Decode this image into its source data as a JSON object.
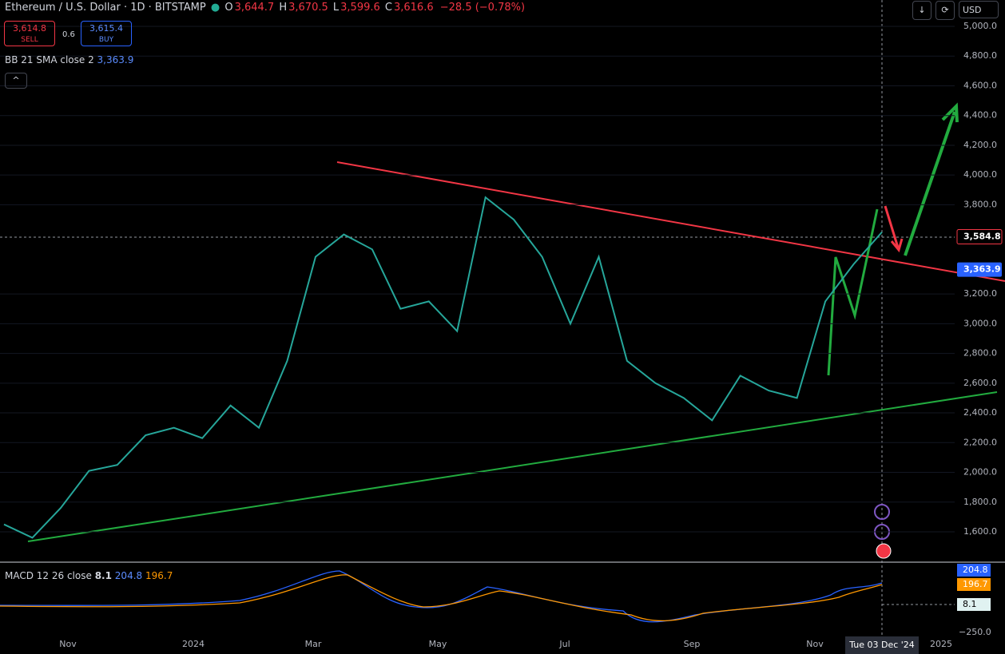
{
  "header": {
    "symbol": "Ethereum / U.S. Dollar · 1D · BITSTAMP",
    "ohlc": [
      {
        "key": "O",
        "value": "3,644.7"
      },
      {
        "key": "H",
        "value": "3,670.5"
      },
      {
        "key": "L",
        "value": "3,599.6"
      },
      {
        "key": "C",
        "value": "3,616.6"
      }
    ],
    "change": "−28.5 (−0.78%)"
  },
  "trade": {
    "sell_price": "3,614.8",
    "sell": "SELL",
    "spread": "0.6",
    "buy_price": "3,615.4",
    "buy": "BUY"
  },
  "indicator": {
    "name": "BB 21 SMA close 2",
    "value": "3,363.9"
  },
  "toolbar": {
    "currency": "USD"
  },
  "price_axis": {
    "ylim": [
      1400,
      5000
    ],
    "ticks": [
      {
        "value": 5000,
        "label": "5,000.0"
      },
      {
        "value": 4800,
        "label": "4,800.0"
      },
      {
        "value": 4600,
        "label": "4,600.0"
      },
      {
        "value": 4400,
        "label": "4,400.0"
      },
      {
        "value": 4200,
        "label": "4,200.0"
      },
      {
        "value": 4000,
        "label": "4,000.0"
      },
      {
        "value": 3800,
        "label": "3,800.0"
      },
      {
        "value": 3200,
        "label": "3,200.0"
      },
      {
        "value": 3000,
        "label": "3,000.0"
      },
      {
        "value": 2800,
        "label": "2,800.0"
      },
      {
        "value": 2600,
        "label": "2,600.0"
      },
      {
        "value": 2400,
        "label": "2,400.0"
      },
      {
        "value": 2200,
        "label": "2,200.0"
      },
      {
        "value": 2000,
        "label": "2,000.0"
      },
      {
        "value": 1800,
        "label": "1,800.0"
      },
      {
        "value": 1600,
        "label": "1,600.0"
      }
    ],
    "last_price": {
      "value": 3584.8,
      "label": "3,584.8"
    },
    "bb_price": {
      "value": 3363.9,
      "label": "3,363.9"
    }
  },
  "price_series": {
    "values": [
      1650,
      1560,
      1760,
      2010,
      2050,
      2250,
      2300,
      2230,
      2450,
      2300,
      2750,
      3450,
      3600,
      3500,
      3100,
      3150,
      2950,
      3850,
      3700,
      3450,
      3000,
      3450,
      2750,
      2600,
      2500,
      2350,
      2650,
      2550,
      2500,
      3150,
      3400,
      3616.6
    ]
  },
  "macd": {
    "label": "MACD 12 26 close",
    "histogram": "8.1",
    "macd": "204.8",
    "signal": "196.7",
    "axis_label": "−250.0"
  },
  "time_axis": {
    "labels": [
      "Nov",
      "2024",
      "Mar",
      "May",
      "Jul",
      "Sep",
      "Nov",
      "2025"
    ],
    "crosshair": "Tue 03 Dec '24"
  }
}
